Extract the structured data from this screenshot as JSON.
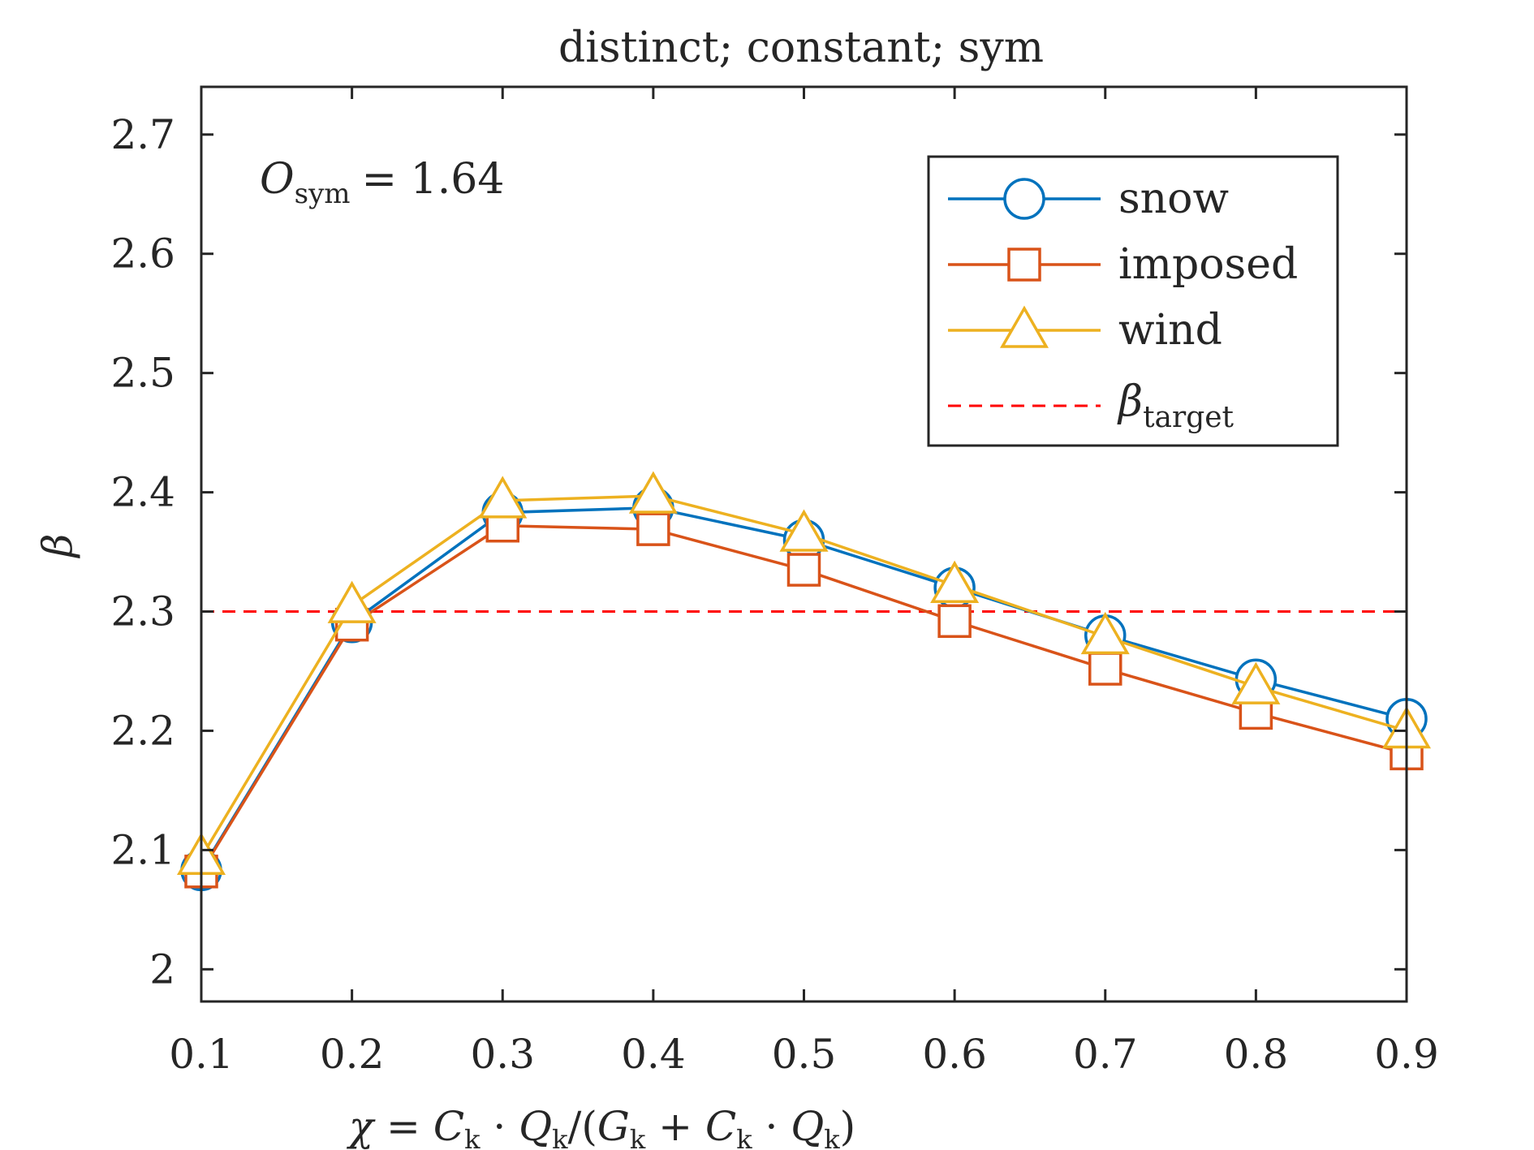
{
  "chart_data": {
    "type": "line",
    "title": "distinct; constant; sym",
    "xlabel": "χ = Ck · Qk/(Gk + Ck · Qk)",
    "ylabel": "β",
    "xlim": [
      0.1,
      0.9
    ],
    "ylim": [
      1.973,
      2.74
    ],
    "xticks": [
      0.1,
      0.2,
      0.3,
      0.4,
      0.5,
      0.6,
      0.7,
      0.8,
      0.9
    ],
    "xtick_labels": [
      "0.1",
      "0.2",
      "0.3",
      "0.4",
      "0.5",
      "0.6",
      "0.7",
      "0.8",
      "0.9"
    ],
    "yticks": [
      2.0,
      2.1,
      2.2,
      2.3,
      2.4,
      2.5,
      2.6,
      2.7
    ],
    "ytick_labels": [
      "2",
      "2.1",
      "2.2",
      "2.3",
      "2.4",
      "2.5",
      "2.6",
      "2.7"
    ],
    "grid": false,
    "legend_position": "top-right",
    "annotation": {
      "base": "O",
      "subscript": "sym",
      "value": "= 1.64"
    },
    "x": [
      0.1,
      0.2,
      0.3,
      0.4,
      0.5,
      0.6,
      0.7,
      0.8,
      0.9
    ],
    "series": [
      {
        "name": "snow",
        "color": "#0072BD",
        "marker": "circle",
        "values": [
          2.083,
          2.291,
          2.383,
          2.387,
          2.36,
          2.32,
          2.28,
          2.243,
          2.21
        ]
      },
      {
        "name": "imposed",
        "color": "#D95319",
        "marker": "square",
        "values": [
          2.082,
          2.289,
          2.372,
          2.369,
          2.335,
          2.292,
          2.252,
          2.215,
          2.181
        ]
      },
      {
        "name": "wind",
        "color": "#EDB120",
        "marker": "triangle",
        "values": [
          2.094,
          2.305,
          2.393,
          2.397,
          2.365,
          2.322,
          2.279,
          2.237,
          2.2
        ]
      }
    ],
    "reference_line": {
      "name_base": "β",
      "name_subscript": "target",
      "value": 2.3,
      "color": "#FF0000",
      "style": "dashed"
    }
  }
}
